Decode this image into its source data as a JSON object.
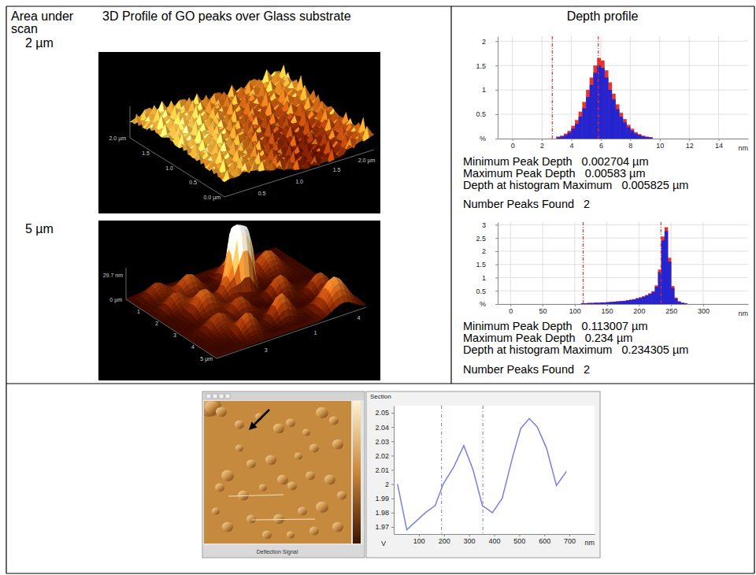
{
  "figure": {
    "headers": [
      "Area under scan",
      "3D Profile of GO peaks over Glass substrate",
      "Depth profile"
    ],
    "rows": [
      {
        "scan": "2 µm",
        "surface_labels": [
          "2.0 µm",
          "1.5",
          "1.0",
          "0.5",
          "0.0 µm",
          "0.5",
          "1.0",
          "1.5",
          "2.0 µm"
        ],
        "stats": [
          {
            "label": "Minimum Peak Depth",
            "value": "0.002704 µm"
          },
          {
            "label": "Maximum Peak Depth",
            "value": "0.00583 µm"
          },
          {
            "label": "Depth at histogram Maximum",
            "value": "0.005825 µm"
          },
          {
            "label": "Number Peaks Found",
            "value": "2"
          }
        ]
      },
      {
        "scan": "5 µm",
        "surface_labels": [
          "0 µm",
          "1",
          "2",
          "3",
          "4",
          "5 µm",
          "29.7 nm",
          "3",
          "1",
          "4"
        ],
        "stats": [
          {
            "label": "Minimum Peak Depth",
            "value": "0.113007 µm"
          },
          {
            "label": "Maximum Peak Depth",
            "value": "0.234 µm"
          },
          {
            "label": "Depth at histogram Maximum",
            "value": "0.234305 µm"
          },
          {
            "label": "Number Peaks Found",
            "value": "2"
          }
        ]
      }
    ],
    "image_caption": "Deflection Signal"
  },
  "chart_data": [
    {
      "type": "histogram",
      "x_label": "nm",
      "bins": [
        3,
        3.25,
        3.5,
        3.75,
        4,
        4.25,
        4.5,
        4.75,
        5,
        5.25,
        5.5,
        5.75,
        6,
        6.25,
        6.5,
        6.75,
        7,
        7.25,
        7.5,
        7.75,
        8,
        8.25,
        8.5,
        8.75,
        9,
        9.25,
        9.5
      ],
      "series": [
        {
          "color": "#e5352c",
          "values": [
            0.04,
            0.06,
            0.1,
            0.16,
            0.26,
            0.38,
            0.55,
            0.75,
            1.0,
            1.25,
            1.5,
            1.65,
            1.6,
            1.4,
            1.15,
            0.92,
            0.7,
            0.53,
            0.4,
            0.28,
            0.2,
            0.13,
            0.09,
            0.06,
            0.04,
            0.03
          ]
        },
        {
          "color": "#2424d0",
          "values": [
            0.02,
            0.04,
            0.07,
            0.12,
            0.2,
            0.3,
            0.45,
            0.62,
            0.85,
            1.1,
            1.35,
            1.5,
            1.45,
            1.25,
            1.0,
            0.8,
            0.6,
            0.45,
            0.33,
            0.23,
            0.16,
            0.1,
            0.07,
            0.04,
            0.03,
            0.02
          ]
        }
      ],
      "peak_lines": [
        2.704,
        5.83
      ],
      "xlim": [
        -1,
        16
      ],
      "xticks": [
        0,
        2,
        4,
        6,
        8,
        10,
        12,
        14
      ],
      "ylim": [
        0,
        2.1
      ],
      "yticks": [
        {
          "value": 0,
          "label": "%"
        },
        0.5,
        1,
        1.5,
        2
      ],
      "grid": true
    },
    {
      "type": "histogram",
      "x_label": "nm",
      "bins": [
        110,
        115,
        120,
        125,
        130,
        135,
        140,
        145,
        150,
        155,
        160,
        165,
        170,
        175,
        180,
        185,
        190,
        195,
        200,
        205,
        210,
        215,
        220,
        225,
        230,
        235,
        240,
        245,
        250,
        255,
        260,
        265,
        270,
        275
      ],
      "series": [
        {
          "color": "#e5352c",
          "values": [
            0.03,
            0.03,
            0.04,
            0.04,
            0.05,
            0.05,
            0.06,
            0.06,
            0.07,
            0.08,
            0.09,
            0.1,
            0.11,
            0.12,
            0.14,
            0.16,
            0.18,
            0.22,
            0.25,
            0.29,
            0.34,
            0.4,
            0.48,
            0.7,
            1.3,
            2.55,
            2.9,
            1.75,
            0.68,
            0.24,
            0.1,
            0.05,
            0.03
          ]
        },
        {
          "color": "#2424d0",
          "values": [
            0.02,
            0.02,
            0.03,
            0.03,
            0.04,
            0.04,
            0.05,
            0.05,
            0.06,
            0.07,
            0.08,
            0.09,
            0.1,
            0.11,
            0.13,
            0.15,
            0.17,
            0.2,
            0.23,
            0.27,
            0.32,
            0.38,
            0.45,
            0.65,
            1.2,
            2.4,
            2.75,
            1.6,
            0.6,
            0.2,
            0.08,
            0.04,
            0.02
          ]
        }
      ],
      "peak_lines": [
        113.007,
        234.305
      ],
      "xlim": [
        -20,
        370
      ],
      "xticks": [
        0,
        50,
        100,
        150,
        200,
        250,
        300
      ],
      "ylim": [
        0,
        3.1
      ],
      "yticks": [
        {
          "value": 0,
          "label": "%"
        },
        0.5,
        1,
        1.5,
        2,
        2.5,
        3
      ],
      "grid": true
    },
    {
      "type": "line",
      "title": "Section",
      "x_label": "nm",
      "y_label": "V",
      "x": [
        15,
        52,
        126,
        165,
        197,
        239,
        279,
        316,
        353,
        393,
        432,
        475,
        506,
        540,
        572,
        609,
        648,
        688
      ],
      "series": [
        {
          "color": "#7a7fe3",
          "values": [
            2.0,
            1.968,
            1.98,
            1.985,
            2.0,
            2.012,
            2.027,
            2.01,
            1.985,
            1.98,
            1.99,
            2.02,
            2.039,
            2.046,
            2.04,
            2.025,
            1.999,
            2.009
          ]
        }
      ],
      "cursor_lines": [
        190,
        355
      ],
      "xlim": [
        0,
        800
      ],
      "xticks": [
        100,
        200,
        300,
        400,
        500,
        600,
        700
      ],
      "ylim": [
        1.965,
        2.055
      ],
      "yticks": [
        1.97,
        1.98,
        1.99,
        2,
        2.01,
        2.02,
        2.03,
        2.04,
        2.05
      ],
      "grid": false
    }
  ]
}
